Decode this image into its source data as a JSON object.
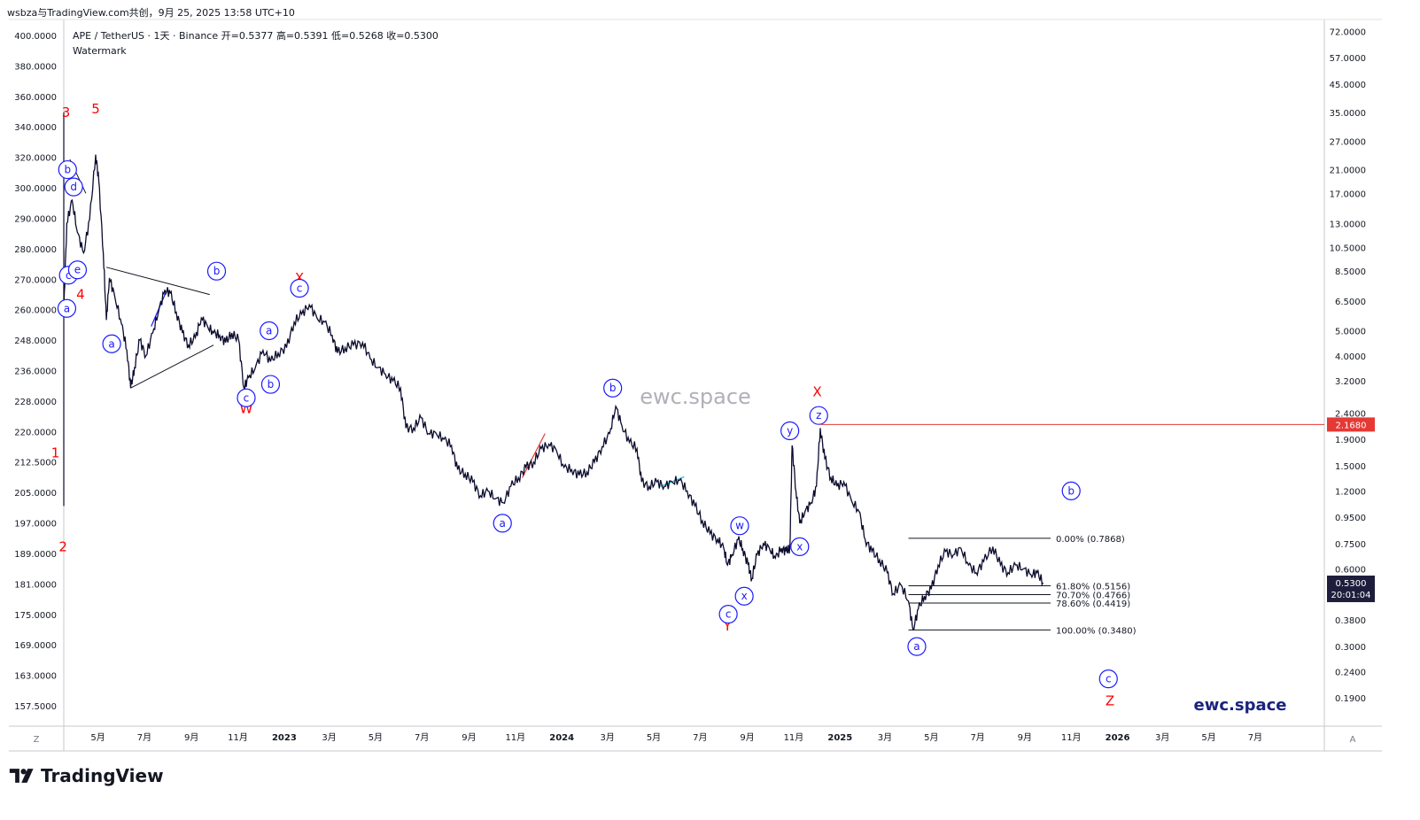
{
  "header": {
    "text": "wsbza与TradingView.com共创，9月 25, 2025 13:58 UTC+10"
  },
  "symbol_line": "APE / TetherUS · 1天 · Binance  开=0.5377  高=0.5391  低=0.5268  收=0.5300",
  "watermark_label": "Watermark",
  "center_watermark": "ewc.space",
  "brand_watermark": "ewc.space",
  "footer": {
    "brand": "TradingView"
  },
  "corner_labels": {
    "bottom_left": "Z",
    "bottom_right": "A"
  },
  "colors": {
    "accent_red": "#ff0000",
    "wave_blue": "#1a1aff",
    "candle": "#0b0b2e",
    "price_tag": "#1e1e3c",
    "line_tag": "#e53935"
  },
  "chart_data": {
    "type": "line",
    "title": "APE / TetherUS · 1天 · Binance",
    "y_scale": "log",
    "ylim": [
      0.15,
      80
    ],
    "x_range": [
      "2022-03-17",
      "2026-09-30"
    ],
    "right_axis_ticks": [
      72.0,
      57.0,
      45.0,
      35.0,
      27.0,
      21.0,
      17.0,
      13.0,
      10.5,
      8.5,
      6.5,
      5.0,
      4.0,
      3.2,
      2.4,
      1.9,
      1.5,
      1.2,
      0.95,
      0.75,
      0.6,
      0.38,
      0.3,
      0.24,
      0.19
    ],
    "right_axis_labels": [
      "72.0000",
      "57.0000",
      "45.0000",
      "35.0000",
      "27.0000",
      "21.0000",
      "17.0000",
      "13.0000",
      "10.5000",
      "8.5000",
      "6.5000",
      "5.0000",
      "4.0000",
      "3.2000",
      "2.4000",
      "1.9000",
      "1.5000",
      "1.2000",
      "0.9500",
      "0.7500",
      "0.6000",
      "0.3800",
      "0.3000",
      "0.2400",
      "0.1900"
    ],
    "left_axis_labels": [
      "400.0000",
      "380.0000",
      "360.0000",
      "340.0000",
      "320.0000",
      "300.0000",
      "290.0000",
      "280.0000",
      "270.0000",
      "260.0000",
      "248.0000",
      "236.0000",
      "228.0000",
      "220.0000",
      "212.5000",
      "205.0000",
      "197.0000",
      "189.0000",
      "181.0000",
      "175.0000",
      "169.0000",
      "163.0000",
      "157.5000"
    ],
    "x_ticks": [
      {
        "date": "2022-05-01",
        "label": "5月"
      },
      {
        "date": "2022-07-01",
        "label": "7月"
      },
      {
        "date": "2022-09-01",
        "label": "9月"
      },
      {
        "date": "2022-11-01",
        "label": "11月"
      },
      {
        "date": "2023-01-01",
        "label": "2023"
      },
      {
        "date": "2023-03-01",
        "label": "3月"
      },
      {
        "date": "2023-05-01",
        "label": "5月"
      },
      {
        "date": "2023-07-01",
        "label": "7月"
      },
      {
        "date": "2023-09-01",
        "label": "9月"
      },
      {
        "date": "2023-11-01",
        "label": "11月"
      },
      {
        "date": "2024-01-01",
        "label": "2024"
      },
      {
        "date": "2024-03-01",
        "label": "3月"
      },
      {
        "date": "2024-05-01",
        "label": "5月"
      },
      {
        "date": "2024-07-01",
        "label": "7月"
      },
      {
        "date": "2024-09-01",
        "label": "9月"
      },
      {
        "date": "2024-11-01",
        "label": "11月"
      },
      {
        "date": "2025-01-01",
        "label": "2025"
      },
      {
        "date": "2025-03-01",
        "label": "3月"
      },
      {
        "date": "2025-05-01",
        "label": "5月"
      },
      {
        "date": "2025-07-01",
        "label": "7月"
      },
      {
        "date": "2025-09-01",
        "label": "9月"
      },
      {
        "date": "2025-11-01",
        "label": "11月"
      },
      {
        "date": "2026-01-01",
        "label": "2026"
      },
      {
        "date": "2026-03-01",
        "label": "3月"
      },
      {
        "date": "2026-05-01",
        "label": "5月"
      },
      {
        "date": "2026-07-01",
        "label": "7月"
      }
    ],
    "series": [
      {
        "name": "",
        "points": [
          [
            "2022-03-17",
            6.0
          ],
          [
            "2022-03-21",
            13.0
          ],
          [
            "2022-03-28",
            16.0
          ],
          [
            "2022-04-04",
            12.0
          ],
          [
            "2022-04-12",
            10.0
          ],
          [
            "2022-04-20",
            13.5
          ],
          [
            "2022-04-28",
            24.0
          ],
          [
            "2022-05-02",
            19.0
          ],
          [
            "2022-05-08",
            10.0
          ],
          [
            "2022-05-12",
            5.5
          ],
          [
            "2022-05-16",
            8.0
          ],
          [
            "2022-05-23",
            6.8
          ],
          [
            "2022-06-01",
            5.3
          ],
          [
            "2022-06-08",
            4.2
          ],
          [
            "2022-06-13",
            3.0
          ],
          [
            "2022-06-18",
            3.6
          ],
          [
            "2022-06-25",
            4.6
          ],
          [
            "2022-07-03",
            4.0
          ],
          [
            "2022-07-12",
            4.9
          ],
          [
            "2022-07-20",
            6.0
          ],
          [
            "2022-07-28",
            7.2
          ],
          [
            "2022-08-04",
            7.0
          ],
          [
            "2022-08-12",
            5.9
          ],
          [
            "2022-08-20",
            4.9
          ],
          [
            "2022-08-28",
            4.4
          ],
          [
            "2022-09-06",
            4.7
          ],
          [
            "2022-09-14",
            5.6
          ],
          [
            "2022-09-22",
            5.2
          ],
          [
            "2022-09-30",
            4.9
          ],
          [
            "2022-10-08",
            4.8
          ],
          [
            "2022-10-16",
            4.5
          ],
          [
            "2022-10-24",
            4.9
          ],
          [
            "2022-11-02",
            4.6
          ],
          [
            "2022-11-09",
            3.0
          ],
          [
            "2022-11-15",
            3.3
          ],
          [
            "2022-11-24",
            3.6
          ],
          [
            "2022-12-04",
            4.2
          ],
          [
            "2022-12-14",
            3.8
          ],
          [
            "2022-12-24",
            4.1
          ],
          [
            "2023-01-04",
            4.3
          ],
          [
            "2023-01-14",
            5.4
          ],
          [
            "2023-01-24",
            5.8
          ],
          [
            "2023-02-03",
            6.3
          ],
          [
            "2023-02-13",
            5.6
          ],
          [
            "2023-02-23",
            5.4
          ],
          [
            "2023-03-05",
            4.8
          ],
          [
            "2023-03-12",
            4.1
          ],
          [
            "2023-03-22",
            4.3
          ],
          [
            "2023-04-02",
            4.4
          ],
          [
            "2023-04-14",
            4.5
          ],
          [
            "2023-04-24",
            3.9
          ],
          [
            "2023-05-04",
            3.6
          ],
          [
            "2023-05-14",
            3.4
          ],
          [
            "2023-05-24",
            3.2
          ],
          [
            "2023-06-03",
            3.0
          ],
          [
            "2023-06-10",
            2.1
          ],
          [
            "2023-06-20",
            2.1
          ],
          [
            "2023-06-30",
            2.3
          ],
          [
            "2023-07-10",
            2.0
          ],
          [
            "2023-07-20",
            2.0
          ],
          [
            "2023-07-30",
            1.9
          ],
          [
            "2023-08-09",
            1.8
          ],
          [
            "2023-08-17",
            1.45
          ],
          [
            "2023-08-27",
            1.4
          ],
          [
            "2023-09-06",
            1.3
          ],
          [
            "2023-09-16",
            1.15
          ],
          [
            "2023-09-26",
            1.2
          ],
          [
            "2023-10-06",
            1.12
          ],
          [
            "2023-10-16",
            1.08
          ],
          [
            "2023-10-26",
            1.25
          ],
          [
            "2023-11-05",
            1.35
          ],
          [
            "2023-11-15",
            1.48
          ],
          [
            "2023-11-25",
            1.55
          ],
          [
            "2023-12-05",
            1.75
          ],
          [
            "2023-12-15",
            1.82
          ],
          [
            "2023-12-25",
            1.72
          ],
          [
            "2024-01-04",
            1.48
          ],
          [
            "2024-01-14",
            1.45
          ],
          [
            "2024-01-24",
            1.38
          ],
          [
            "2024-02-03",
            1.42
          ],
          [
            "2024-02-13",
            1.55
          ],
          [
            "2024-02-23",
            1.78
          ],
          [
            "2024-03-04",
            2.0
          ],
          [
            "2024-03-12",
            2.55
          ],
          [
            "2024-03-20",
            2.15
          ],
          [
            "2024-03-30",
            1.85
          ],
          [
            "2024-04-09",
            1.75
          ],
          [
            "2024-04-15",
            1.3
          ],
          [
            "2024-04-25",
            1.25
          ],
          [
            "2024-05-05",
            1.3
          ],
          [
            "2024-05-15",
            1.25
          ],
          [
            "2024-05-25",
            1.3
          ],
          [
            "2024-06-04",
            1.32
          ],
          [
            "2024-06-14",
            1.2
          ],
          [
            "2024-06-24",
            1.05
          ],
          [
            "2024-07-04",
            0.92
          ],
          [
            "2024-07-14",
            0.82
          ],
          [
            "2024-07-24",
            0.78
          ],
          [
            "2024-08-01",
            0.72
          ],
          [
            "2024-08-06",
            0.62
          ],
          [
            "2024-08-12",
            0.68
          ],
          [
            "2024-08-20",
            0.78
          ],
          [
            "2024-08-26",
            0.72
          ],
          [
            "2024-09-02",
            0.62
          ],
          [
            "2024-09-07",
            0.55
          ],
          [
            "2024-09-14",
            0.68
          ],
          [
            "2024-09-22",
            0.75
          ],
          [
            "2024-09-30",
            0.72
          ],
          [
            "2024-10-08",
            0.66
          ],
          [
            "2024-10-16",
            0.72
          ],
          [
            "2024-10-22",
            0.7
          ],
          [
            "2024-10-27",
            0.72
          ],
          [
            "2024-10-30",
            1.8
          ],
          [
            "2024-11-04",
            1.2
          ],
          [
            "2024-11-09",
            0.9
          ],
          [
            "2024-11-16",
            1.0
          ],
          [
            "2024-11-24",
            1.08
          ],
          [
            "2024-12-01",
            1.25
          ],
          [
            "2024-12-06",
            2.1
          ],
          [
            "2024-12-12",
            1.6
          ],
          [
            "2024-12-20",
            1.35
          ],
          [
            "2024-12-28",
            1.25
          ],
          [
            "2025-01-06",
            1.3
          ],
          [
            "2025-01-16",
            1.1
          ],
          [
            "2025-01-26",
            1.0
          ],
          [
            "2025-02-03",
            0.78
          ],
          [
            "2025-02-12",
            0.7
          ],
          [
            "2025-02-22",
            0.65
          ],
          [
            "2025-03-04",
            0.58
          ],
          [
            "2025-03-12",
            0.48
          ],
          [
            "2025-03-22",
            0.52
          ],
          [
            "2025-04-01",
            0.45
          ],
          [
            "2025-04-07",
            0.348
          ],
          [
            "2025-04-14",
            0.42
          ],
          [
            "2025-04-22",
            0.47
          ],
          [
            "2025-05-01",
            0.5
          ],
          [
            "2025-05-10",
            0.62
          ],
          [
            "2025-05-20",
            0.7
          ],
          [
            "2025-05-30",
            0.68
          ],
          [
            "2025-06-09",
            0.72
          ],
          [
            "2025-06-19",
            0.62
          ],
          [
            "2025-06-29",
            0.58
          ],
          [
            "2025-07-09",
            0.64
          ],
          [
            "2025-07-21",
            0.73
          ],
          [
            "2025-07-31",
            0.62
          ],
          [
            "2025-08-10",
            0.58
          ],
          [
            "2025-08-20",
            0.62
          ],
          [
            "2025-08-30",
            0.6
          ],
          [
            "2025-09-09",
            0.57
          ],
          [
            "2025-09-17",
            0.58
          ],
          [
            "2025-09-25",
            0.53
          ]
        ]
      }
    ],
    "price_lines": [
      {
        "value": 2.168,
        "label": "2.1680",
        "color": "#e53935",
        "from": "2024-12-06"
      }
    ],
    "current_price": {
      "value": 0.53,
      "label": "0.5300",
      "timer": "20:01:04"
    },
    "fib_levels": [
      {
        "value": 0.7868,
        "label": "0.00% (0.7868)"
      },
      {
        "value": 0.5156,
        "label": "61.80% (0.5156)"
      },
      {
        "value": 0.4766,
        "label": "70.70% (0.4766)"
      },
      {
        "value": 0.4419,
        "label": "78.60% (0.4419)"
      },
      {
        "value": 0.348,
        "label": "100.00% (0.3480)"
      }
    ],
    "fib_range": [
      "2025-04-01",
      "2025-10-05"
    ],
    "wave_labels_red": [
      {
        "t": "3",
        "date": "2022-03-20",
        "price": 35.0
      },
      {
        "t": "5",
        "date": "2022-04-28",
        "price": 36.0
      },
      {
        "t": "4",
        "date": "2022-04-08",
        "price": 6.9
      },
      {
        "t": "1",
        "date": "2022-03-06",
        "price": 1.68
      },
      {
        "t": "2",
        "date": "2022-03-16",
        "price": 0.73
      },
      {
        "t": "X",
        "date": "2023-01-21",
        "price": 8.0
      },
      {
        "t": "W",
        "date": "2022-11-12",
        "price": 2.5
      },
      {
        "t": "Y",
        "date": "2024-08-06",
        "price": 0.36
      },
      {
        "t": "X",
        "date": "2024-12-02",
        "price": 2.9
      },
      {
        "t": "Z",
        "date": "2025-12-22",
        "price": 0.185
      }
    ],
    "wave_labels_blue": [
      {
        "t": "b",
        "date": "2022-03-22",
        "price": 21.0
      },
      {
        "t": "d",
        "date": "2022-03-30",
        "price": 18.0
      },
      {
        "t": "c",
        "date": "2022-03-23",
        "price": 8.2
      },
      {
        "t": "e",
        "date": "2022-04-04",
        "price": 8.6
      },
      {
        "t": "a",
        "date": "2022-03-21",
        "price": 6.1
      },
      {
        "t": "a",
        "date": "2022-05-19",
        "price": 4.45
      },
      {
        "t": "b",
        "date": "2022-10-04",
        "price": 8.5
      },
      {
        "t": "c",
        "date": "2022-11-12",
        "price": 2.75
      },
      {
        "t": "a",
        "date": "2022-12-12",
        "price": 5.0
      },
      {
        "t": "b",
        "date": "2022-12-14",
        "price": 3.1
      },
      {
        "t": "c",
        "date": "2023-01-21",
        "price": 7.3
      },
      {
        "t": "a",
        "date": "2023-10-15",
        "price": 0.9
      },
      {
        "t": "b",
        "date": "2024-03-08",
        "price": 3.0
      },
      {
        "t": "w",
        "date": "2024-08-22",
        "price": 0.88
      },
      {
        "t": "c",
        "date": "2024-08-07",
        "price": 0.4
      },
      {
        "t": "x",
        "date": "2024-08-28",
        "price": 0.47
      },
      {
        "t": "y",
        "date": "2024-10-27",
        "price": 2.05
      },
      {
        "t": "x",
        "date": "2024-11-09",
        "price": 0.73
      },
      {
        "t": "z",
        "date": "2024-12-04",
        "price": 2.35
      },
      {
        "t": "a",
        "date": "2025-04-12",
        "price": 0.3
      },
      {
        "t": "b",
        "date": "2025-11-01",
        "price": 1.2
      },
      {
        "t": "c",
        "date": "2025-12-20",
        "price": 0.225
      }
    ]
  }
}
